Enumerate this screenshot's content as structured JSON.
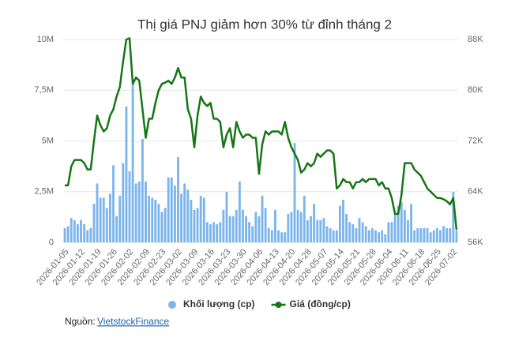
{
  "chart_data": {
    "type": "combo",
    "title": "Thị giá PNJ giảm hơn 30% từ đỉnh tháng 2",
    "categories": [
      "2026-01-05",
      null,
      null,
      null,
      null,
      "2026-01-12",
      null,
      null,
      null,
      null,
      "2026-01-19",
      null,
      null,
      null,
      null,
      "2026-01-26",
      null,
      null,
      null,
      null,
      "2026-02-02",
      null,
      null,
      null,
      null,
      "2026-02-09",
      null,
      null,
      null,
      null,
      "2026-02-23",
      null,
      null,
      null,
      null,
      "2026-03-02",
      null,
      null,
      null,
      null,
      "2026-03-09",
      null,
      null,
      null,
      null,
      "2026-03-16",
      null,
      null,
      null,
      null,
      "2026-03-23",
      null,
      null,
      null,
      null,
      "2026-03-30",
      null,
      null,
      null,
      null,
      "2026-04-06",
      null,
      null,
      null,
      null,
      "2026-04-13",
      null,
      null,
      null,
      null,
      "2026-04-20",
      null,
      null,
      null,
      null,
      "2026-04-28",
      null,
      null,
      null,
      null,
      "2026-05-07",
      null,
      null,
      null,
      null,
      "2026-05-14",
      null,
      null,
      null,
      null,
      "2026-05-21",
      null,
      null,
      null,
      null,
      "2026-05-28",
      null,
      null,
      null,
      null,
      "2026-06-04",
      null,
      null,
      null,
      null,
      "2026-06-11",
      null,
      null,
      null,
      null,
      "2026-06-18",
      null,
      null,
      null,
      null,
      "2026-06-25",
      null,
      null,
      null,
      null,
      "2026-07-02",
      null
    ],
    "series": [
      {
        "name": "Khối lượng (cp)",
        "type": "bar",
        "color": "#7cb5ec",
        "values": [
          700000,
          800000,
          1200000,
          1100000,
          900000,
          1100000,
          900000,
          600000,
          700000,
          1900000,
          2900000,
          2200000,
          2200000,
          1700000,
          2400000,
          3800000,
          1300000,
          2300000,
          3900000,
          6700000,
          3500000,
          7800000,
          2900000,
          3000000,
          5100000,
          3000000,
          2300000,
          2200000,
          2100000,
          1900000,
          1500000,
          1700000,
          3200000,
          3200000,
          2800000,
          4200000,
          2400000,
          2900000,
          2600000,
          2100000,
          1600000,
          1700000,
          2300000,
          2200000,
          1000000,
          900000,
          1000000,
          900000,
          1000000,
          1600000,
          2500000,
          1300000,
          1300000,
          1600000,
          3000000,
          1600000,
          1300000,
          1000000,
          800000,
          1500000,
          1300000,
          2300000,
          1700000,
          700000,
          600000,
          1600000,
          600000,
          500000,
          500000,
          1400000,
          1500000,
          4900000,
          1600000,
          1500000,
          2300000,
          1100000,
          1300000,
          1900000,
          1100000,
          1100000,
          1200000,
          800000,
          700000,
          600000,
          600000,
          1800000,
          2100000,
          1400000,
          1000000,
          900000,
          700000,
          1200000,
          1000000,
          800000,
          600000,
          700000,
          600000,
          500000,
          600000,
          400000,
          1000000,
          1000000,
          1400000,
          1800000,
          2000000,
          1600000,
          1100000,
          1900000,
          600000,
          700000,
          700000,
          700000,
          700000,
          500000,
          600000,
          700000,
          600000,
          800000,
          700000,
          700000,
          2500000,
          600000
        ]
      },
      {
        "name": "Giá (đồng/cp)",
        "type": "line",
        "axis": "y2",
        "color": "#167516",
        "values": [
          65000,
          65000,
          68000,
          69000,
          69000,
          69000,
          68500,
          67500,
          67500,
          72000,
          76000,
          74500,
          73500,
          74000,
          76000,
          77000,
          79000,
          80500,
          84500,
          88000,
          88200,
          81000,
          82000,
          81500,
          77000,
          72500,
          75500,
          75500,
          78000,
          80000,
          81000,
          81200,
          81500,
          81000,
          82000,
          83500,
          82000,
          82000,
          77000,
          75500,
          71000,
          76000,
          79000,
          78000,
          77500,
          78000,
          75500,
          75500,
          75000,
          71000,
          73000,
          74000,
          71000,
          75000,
          73500,
          72500,
          73000,
          73000,
          72500,
          72500,
          66800,
          71500,
          73500,
          73000,
          73500,
          73500,
          73500,
          73000,
          75000,
          72500,
          71000,
          70000,
          69000,
          67000,
          67500,
          68500,
          68000,
          68500,
          70000,
          69500,
          70000,
          70500,
          70500,
          70000,
          64500,
          65000,
          66000,
          65500,
          65500,
          64500,
          65500,
          65500,
          66000,
          65500,
          66000,
          66000,
          66000,
          65000,
          65500,
          64500,
          64500,
          63000,
          60500,
          60500,
          63500,
          68500,
          68500,
          68500,
          67500,
          67000,
          66500,
          65500,
          64500,
          64000,
          63500,
          63000,
          63000,
          62800,
          62500,
          62000,
          63000,
          58000
        ]
      }
    ],
    "ylim": [
      0,
      10000000
    ],
    "yticks": [
      0,
      {
        "value": 2500000,
        "label": "2,5M"
      },
      {
        "value": 5000000,
        "label": "5M"
      },
      {
        "value": 7500000,
        "label": "7,5M"
      },
      {
        "value": 10000000,
        "label": "10M"
      }
    ],
    "y2lim": [
      56000,
      88000
    ],
    "y2ticks": [
      {
        "value": 56000,
        "label": "56K"
      },
      {
        "value": 64000,
        "label": "64K"
      },
      {
        "value": 72000,
        "label": "72K"
      },
      {
        "value": 80000,
        "label": "80K"
      },
      {
        "value": 88000,
        "label": "88K"
      }
    ],
    "grid": true,
    "source_label": "Nguồn:",
    "source": "VietstockFinance"
  }
}
